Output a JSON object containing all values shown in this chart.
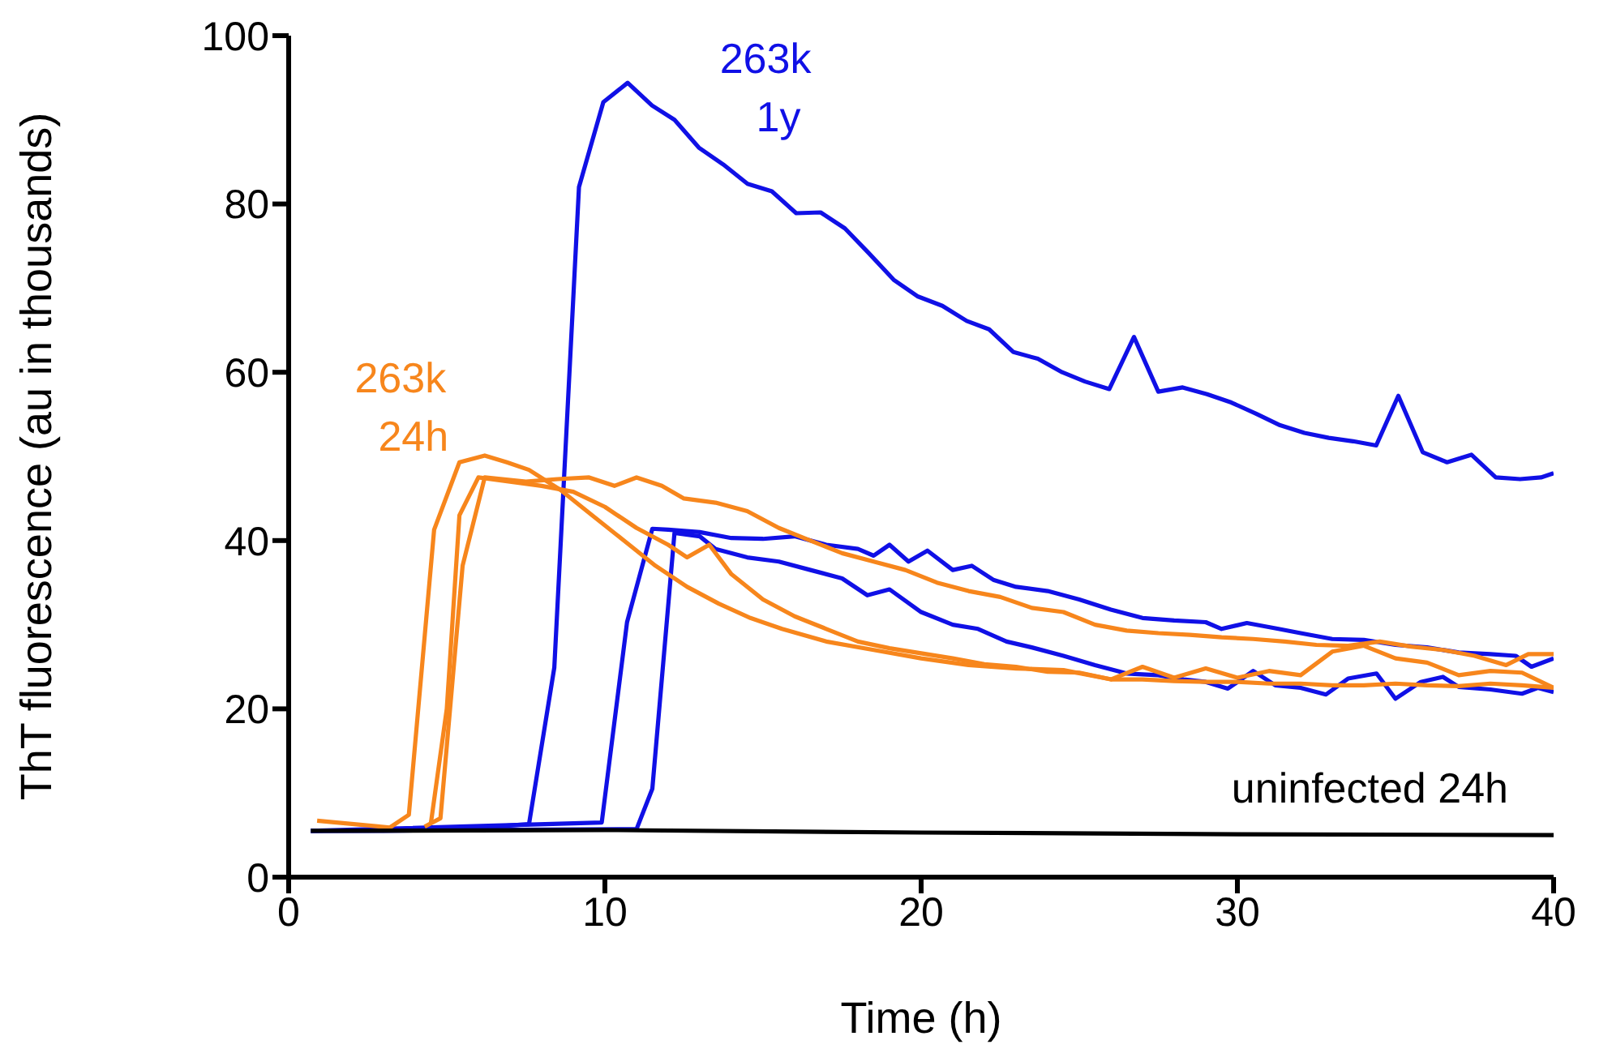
{
  "chart_data": {
    "type": "line",
    "xlabel": "Time (h)",
    "ylabel": "ThT fluorescence (au in thousands)",
    "xlim": [
      0,
      40
    ],
    "xticks": [
      0,
      10,
      20,
      30,
      40
    ],
    "ylim": [
      0,
      100
    ],
    "yticks": [
      0,
      20,
      40,
      60,
      80,
      100
    ],
    "series": [
      {
        "name": "263k 1y",
        "color": "#1010e6",
        "x": [
          0.7,
          3,
          5,
          7.6,
          8.4,
          9.18,
          9.95,
          10.72,
          11.49,
          12.2,
          12.97,
          13.74,
          14.51,
          15.28,
          16.05,
          16.82,
          17.59,
          18.36,
          19.13,
          19.9,
          20.67,
          21.44,
          22.15,
          22.92,
          23.69,
          24.46,
          25.18,
          25.95,
          26.73,
          27.5,
          28.27,
          29.04,
          29.81,
          30.58,
          31.35,
          32.12,
          32.89,
          33.66,
          34.39,
          35.09,
          35.86,
          36.63,
          37.4,
          38.17,
          38.94,
          39.6,
          40
        ],
        "values": [
          5.5,
          5.5,
          5.6,
          6.3,
          24.9,
          82,
          92.1,
          94.4,
          91.7,
          90,
          86.7,
          84.7,
          82.4,
          81.5,
          78.9,
          79,
          77.1,
          74.1,
          71,
          69,
          67.9,
          66.1,
          65.1,
          62.4,
          61.6,
          60,
          58.9,
          58,
          64.2,
          57.7,
          58.2,
          57.4,
          56.4,
          55.1,
          53.7,
          52.8,
          52.2,
          51.8,
          51.3,
          57.2,
          50.5,
          49.3,
          50.2,
          47.5,
          47.3,
          47.5,
          48
        ]
      },
      {
        "color": "#1010e6",
        "x": [
          0.7,
          9.9,
          10.7,
          11.5,
          12,
          13,
          14,
          15,
          16,
          17,
          18,
          18.5,
          19,
          19.6,
          20.2,
          21,
          21.6,
          22.3,
          23,
          24,
          25,
          26,
          27,
          28,
          29,
          29.5,
          30.3,
          31.3,
          32,
          33,
          34,
          35,
          36,
          37,
          38,
          38.8,
          39.3,
          40
        ],
        "values": [
          5.5,
          6.5,
          30.3,
          41.4,
          41.3,
          41,
          40.3,
          40.2,
          40.5,
          39.5,
          39,
          38.2,
          39.5,
          37.5,
          38.8,
          36.5,
          37,
          35.3,
          34.5,
          34,
          33,
          31.8,
          30.8,
          30.5,
          30.3,
          29.5,
          30.2,
          29.5,
          29,
          28.3,
          28.2,
          27.6,
          27.3,
          26.7,
          26.5,
          26.3,
          25,
          26
        ]
      },
      {
        "color": "#1010e6",
        "x": [
          0.7,
          11,
          11.5,
          12.2,
          13,
          13.5,
          14.5,
          15.5,
          16.5,
          17.5,
          18.3,
          19,
          20,
          21,
          21.8,
          22.7,
          23.5,
          24.5,
          25.5,
          26.5,
          27.5,
          28.3,
          29,
          29.7,
          30.5,
          31.2,
          32,
          32.8,
          33.5,
          34.4,
          35,
          35.8,
          36.5,
          37,
          38,
          39,
          39.5,
          40
        ],
        "values": [
          5.5,
          5.7,
          10.5,
          40.9,
          40.5,
          39,
          38,
          37.5,
          36.5,
          35.5,
          33.5,
          34.2,
          31.5,
          30,
          29.5,
          28,
          27.3,
          26.3,
          25.2,
          24.2,
          24,
          23.5,
          23.2,
          22.4,
          24.5,
          22.8,
          22.5,
          21.7,
          23.6,
          24.2,
          21.2,
          23.2,
          23.8,
          22.6,
          22.3,
          21.8,
          22.5,
          22
        ]
      },
      {
        "name": "263k 24h",
        "color": "#f7861c",
        "x": [
          0.9,
          3.2,
          3.8,
          4.6,
          5.4,
          6.2,
          6.9,
          7.6,
          8.6,
          9.6,
          10.6,
          11.6,
          12.6,
          13.6,
          14.6,
          15.6,
          17,
          18.5,
          20,
          21.5,
          23,
          24.5,
          26,
          27,
          28,
          29,
          30,
          31,
          32,
          33,
          34,
          35,
          36,
          37,
          38,
          39,
          40
        ],
        "values": [
          6.7,
          5.9,
          7.4,
          41.3,
          49.3,
          50.1,
          49.3,
          48.4,
          46,
          43,
          40,
          37,
          34.5,
          32.5,
          30.8,
          29.5,
          28,
          27,
          26,
          25.2,
          24.8,
          24.6,
          23.5,
          23.5,
          23.3,
          23.2,
          23.2,
          23,
          23,
          22.8,
          22.8,
          23,
          22.8,
          22.7,
          23,
          22.8,
          22.5
        ]
      },
      {
        "color": "#f7861c",
        "x": [
          4.5,
          5,
          5.4,
          6,
          7,
          8,
          9,
          10,
          11,
          12,
          12.6,
          13.3,
          14,
          15,
          16,
          17,
          18,
          19,
          20,
          21,
          22,
          23,
          24,
          25,
          26,
          27,
          28,
          29,
          30,
          31,
          32,
          33,
          34,
          35,
          36,
          37,
          38,
          39,
          40
        ],
        "values": [
          6.5,
          20,
          43,
          47.5,
          47,
          46.5,
          45.8,
          44,
          41.5,
          39.5,
          38,
          39.5,
          36,
          33,
          31,
          29.5,
          28,
          27.2,
          26.6,
          26,
          25.3,
          25,
          24.4,
          24.3,
          23.5,
          25,
          23.7,
          24.8,
          23.7,
          24.5,
          24,
          26.8,
          27.5,
          26,
          25.5,
          24,
          24.5,
          24.3,
          22.5
        ]
      },
      {
        "color": "#f7861c",
        "x": [
          4.3,
          4.8,
          5.5,
          6.2,
          7.5,
          8.5,
          9.5,
          10.3,
          11,
          11.8,
          12.5,
          13.5,
          14.5,
          15.5,
          16.5,
          17.5,
          18.5,
          19.5,
          20.5,
          21.5,
          22.5,
          23.5,
          24.5,
          25.5,
          26.5,
          27.5,
          28.5,
          29.5,
          30.5,
          31.5,
          32.5,
          33.5,
          34.5,
          35.5,
          36.5,
          37.5,
          38.5,
          39.2,
          40
        ],
        "values": [
          6,
          7,
          37,
          47.5,
          47,
          47.3,
          47.5,
          46.5,
          47.5,
          46.5,
          45,
          44.5,
          43.5,
          41.5,
          40,
          38.5,
          37.5,
          36.5,
          35,
          34,
          33.3,
          32,
          31.5,
          30,
          29.3,
          29,
          28.8,
          28.5,
          28.3,
          28,
          27.6,
          27.5,
          28,
          27.4,
          27,
          26.3,
          25.2,
          26.5,
          26.5
        ]
      },
      {
        "name": "uninfected 24h",
        "color": "#000000",
        "x": [
          0.7,
          10,
          20,
          30,
          40
        ],
        "values": [
          5.5,
          5.6,
          5.3,
          5.1,
          5
        ]
      }
    ]
  }
}
